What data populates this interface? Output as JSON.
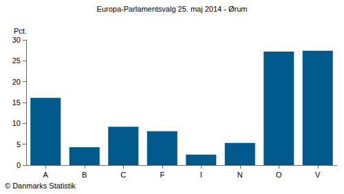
{
  "chart_data": {
    "type": "bar",
    "title": "Europa-Parlamentsvalg 25. maj 2014 - Ørum",
    "ylabel": "Pct.",
    "annotations": [
      "© Danmarks Statistik"
    ],
    "categories": [
      "A",
      "B",
      "C",
      "F",
      "I",
      "N",
      "O",
      "V"
    ],
    "values": [
      16.1,
      4.3,
      9.2,
      8.1,
      2.5,
      5.3,
      27.2,
      27.4
    ],
    "color": "#005a8c",
    "ylim": [
      0,
      30
    ],
    "yticks": [
      0,
      5,
      10,
      15,
      20,
      25,
      30
    ],
    "grid": false
  }
}
